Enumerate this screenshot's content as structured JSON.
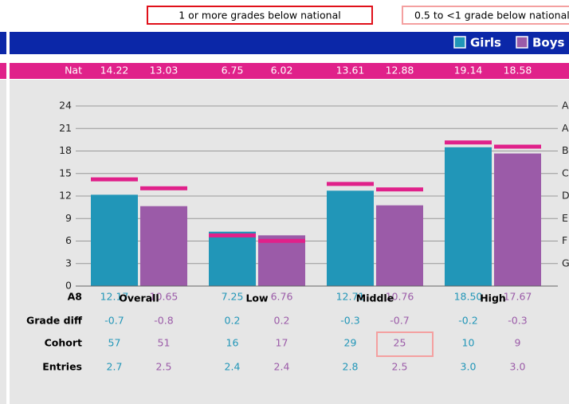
{
  "legend_boxes": [
    "1 or more grades below national",
    "0.5 to <1 grade below national"
  ],
  "chart_data": {
    "type": "bar",
    "national_label": "Nat",
    "categories": [
      "Overall",
      "Low",
      "Middle",
      "High"
    ],
    "series": [
      {
        "name": "Girls",
        "color": "#2196b8",
        "values": [
          12.17,
          7.25,
          12.71,
          18.5
        ],
        "value_labels": [
          "12.17",
          "7.25",
          "12.71",
          "18.50"
        ],
        "national": [
          14.22,
          6.75,
          13.61,
          19.14
        ]
      },
      {
        "name": "Boys",
        "color": "#9b5ba8",
        "values": [
          10.65,
          6.76,
          10.76,
          17.67
        ],
        "value_labels": [
          "10.65",
          "6.76",
          "10.76",
          "17.67"
        ],
        "national": [
          13.03,
          6.02,
          12.88,
          18.58
        ]
      }
    ],
    "national_color": "#e0218a",
    "ylim": [
      0,
      24
    ],
    "yticks": [
      0,
      3,
      6,
      9,
      12,
      15,
      18,
      21,
      24
    ],
    "grid": true,
    "grade_labels": [
      "G",
      "F",
      "E",
      "D",
      "C",
      "B",
      "A",
      "A*"
    ]
  },
  "table": {
    "value_row_label": "A8",
    "rows": [
      {
        "label": "Grade diff",
        "girls": [
          "-0.7",
          "0.2",
          "-0.3",
          "-0.2"
        ],
        "boys": [
          "-0.8",
          "0.2",
          "-0.7",
          "-0.3"
        ]
      },
      {
        "label": "Cohort",
        "girls": [
          "57",
          "16",
          "29",
          "10"
        ],
        "boys": [
          "51",
          "17",
          "25",
          "9"
        ]
      },
      {
        "label": "Entries",
        "girls": [
          "2.7",
          "2.4",
          "2.8",
          "3.0"
        ],
        "boys": [
          "2.5",
          "2.4",
          "2.5",
          "3.0"
        ]
      }
    ]
  }
}
